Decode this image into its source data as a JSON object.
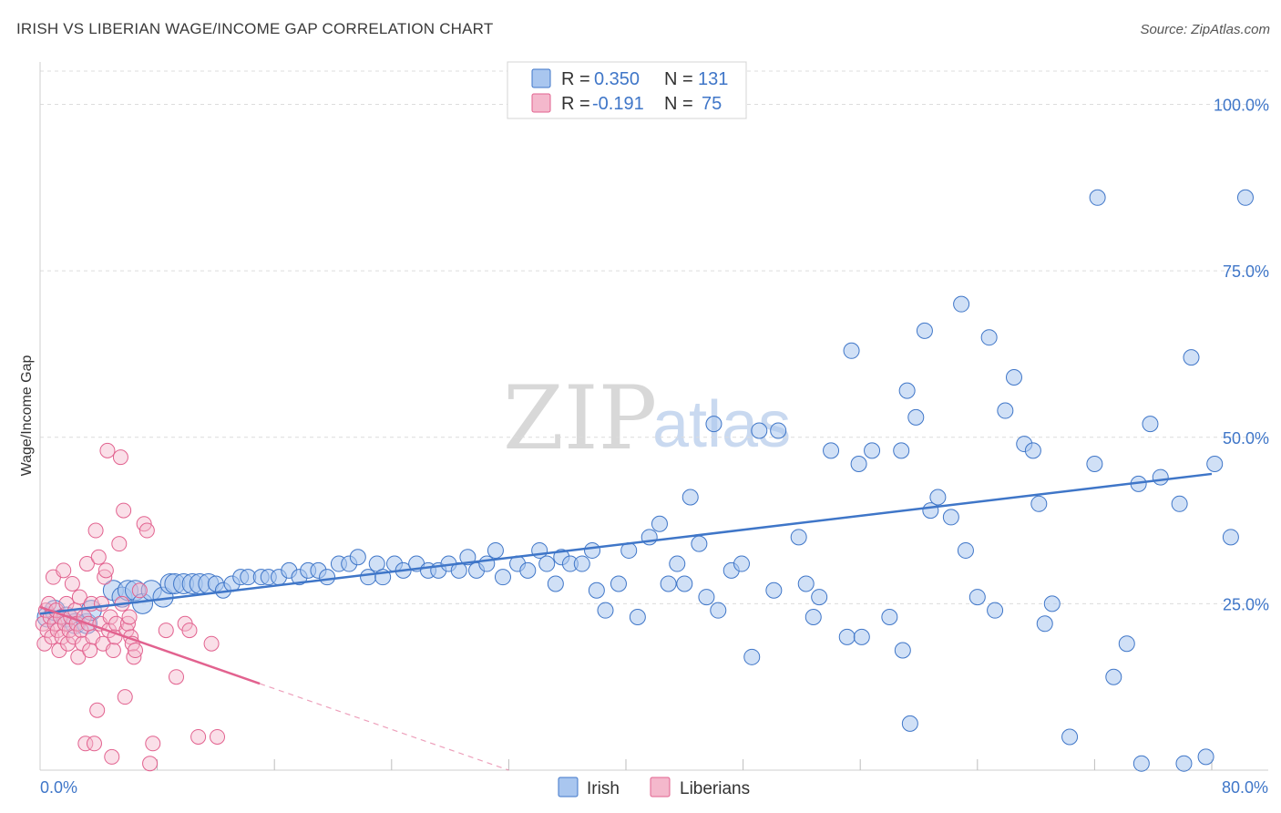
{
  "title": "IRISH VS LIBERIAN WAGE/INCOME GAP CORRELATION CHART",
  "source": "Source: ZipAtlas.com",
  "watermark": {
    "part1": "ZIP",
    "part2": "atlas"
  },
  "colors": {
    "irish": "#3f76c8",
    "irish_fill": "#a9c6ef",
    "liberian": "#e2628f",
    "liberian_fill": "#f4b8cc",
    "grid": "#dcdcdc",
    "axis_text": "#3f76c8"
  },
  "legend": {
    "r_label": "R =",
    "n_label": "N =",
    "rows": [
      {
        "r": "0.350",
        "n": "131"
      },
      {
        "r": "-0.191",
        "n": "75"
      }
    ]
  },
  "chart_data": {
    "type": "scatter",
    "title": "IRISH VS LIBERIAN WAGE/INCOME GAP CORRELATION CHART",
    "xlabel": "",
    "ylabel": "Wage/Income Gap",
    "xlim": [
      0,
      80
    ],
    "ylim": [
      0,
      105
    ],
    "x_tick_labels": [
      "0.0%",
      "80.0%"
    ],
    "y_ticks": [
      25,
      50,
      75,
      100
    ],
    "y_tick_labels": [
      "25.0%",
      "50.0%",
      "75.0%",
      "100.0%"
    ],
    "grid": true,
    "legend_position": "top-center",
    "series": [
      {
        "name": "Irish",
        "color": "#3f76c8",
        "trend": {
          "x0": 0,
          "y0": 23.5,
          "x1": 80,
          "y1": 44.5
        },
        "points": [
          [
            0.5,
            23
          ],
          [
            1.0,
            24
          ],
          [
            1.8,
            23
          ],
          [
            2.4,
            22
          ],
          [
            3.2,
            22
          ],
          [
            3.5,
            24
          ],
          [
            5.0,
            27
          ],
          [
            5.6,
            26
          ],
          [
            6.0,
            27
          ],
          [
            6.5,
            27
          ],
          [
            7.0,
            25
          ],
          [
            7.6,
            27
          ],
          [
            8.4,
            26
          ],
          [
            8.9,
            28
          ],
          [
            9.2,
            28
          ],
          [
            9.8,
            28
          ],
          [
            10.4,
            28
          ],
          [
            10.9,
            28
          ],
          [
            11.5,
            28
          ],
          [
            12.0,
            28
          ],
          [
            12.5,
            27
          ],
          [
            13.1,
            28
          ],
          [
            13.7,
            29
          ],
          [
            14.2,
            29
          ],
          [
            15.1,
            29
          ],
          [
            15.6,
            29
          ],
          [
            16.3,
            29
          ],
          [
            17.0,
            30
          ],
          [
            17.7,
            29
          ],
          [
            18.3,
            30
          ],
          [
            19.0,
            30
          ],
          [
            19.6,
            29
          ],
          [
            20.4,
            31
          ],
          [
            21.1,
            31
          ],
          [
            21.7,
            32
          ],
          [
            22.4,
            29
          ],
          [
            23.0,
            31
          ],
          [
            23.4,
            29
          ],
          [
            24.2,
            31
          ],
          [
            24.8,
            30
          ],
          [
            25.7,
            31
          ],
          [
            26.5,
            30
          ],
          [
            27.2,
            30
          ],
          [
            27.9,
            31
          ],
          [
            28.6,
            30
          ],
          [
            29.2,
            32
          ],
          [
            29.8,
            30
          ],
          [
            30.5,
            31
          ],
          [
            31.6,
            29
          ],
          [
            31.1,
            33
          ],
          [
            32.6,
            31
          ],
          [
            33.3,
            30
          ],
          [
            34.1,
            33
          ],
          [
            34.6,
            31
          ],
          [
            35.2,
            28
          ],
          [
            35.6,
            32
          ],
          [
            36.2,
            31
          ],
          [
            37.0,
            31
          ],
          [
            37.7,
            33
          ],
          [
            38.0,
            27
          ],
          [
            38.6,
            24
          ],
          [
            39.5,
            28
          ],
          [
            40.2,
            33
          ],
          [
            40.8,
            23
          ],
          [
            41.6,
            35
          ],
          [
            42.3,
            37
          ],
          [
            42.9,
            28
          ],
          [
            43.5,
            31
          ],
          [
            44.0,
            28
          ],
          [
            44.4,
            41
          ],
          [
            45.0,
            34
          ],
          [
            45.5,
            26
          ],
          [
            46.0,
            52
          ],
          [
            46.3,
            24
          ],
          [
            47.2,
            30
          ],
          [
            47.9,
            31
          ],
          [
            48.6,
            17
          ],
          [
            49.1,
            51
          ],
          [
            50.1,
            27
          ],
          [
            50.4,
            51
          ],
          [
            51.8,
            35
          ],
          [
            52.3,
            28
          ],
          [
            52.8,
            23
          ],
          [
            53.2,
            26
          ],
          [
            54.0,
            48
          ],
          [
            55.1,
            20
          ],
          [
            55.4,
            63
          ],
          [
            55.9,
            46
          ],
          [
            56.1,
            20
          ],
          [
            56.8,
            48
          ],
          [
            58.0,
            23
          ],
          [
            58.8,
            48
          ],
          [
            58.9,
            18
          ],
          [
            59.4,
            7
          ],
          [
            59.2,
            57
          ],
          [
            59.8,
            53
          ],
          [
            60.4,
            66
          ],
          [
            60.8,
            39
          ],
          [
            61.3,
            41
          ],
          [
            62.2,
            38
          ],
          [
            62.9,
            70
          ],
          [
            63.2,
            33
          ],
          [
            64.0,
            26
          ],
          [
            64.8,
            65
          ],
          [
            65.2,
            24
          ],
          [
            65.9,
            54
          ],
          [
            66.5,
            59
          ],
          [
            67.2,
            49
          ],
          [
            67.8,
            48
          ],
          [
            68.2,
            40
          ],
          [
            68.6,
            22
          ],
          [
            69.1,
            25
          ],
          [
            70.3,
            5
          ],
          [
            72.0,
            46
          ],
          [
            72.2,
            86
          ],
          [
            73.3,
            14
          ],
          [
            74.2,
            19
          ],
          [
            75.0,
            43
          ],
          [
            75.2,
            1
          ],
          [
            75.8,
            52
          ],
          [
            76.5,
            44
          ],
          [
            78.1,
            1
          ],
          [
            77.8,
            40
          ],
          [
            78.6,
            62
          ],
          [
            79.6,
            2
          ],
          [
            80.2,
            46
          ],
          [
            81.3,
            35
          ],
          [
            82.3,
            86
          ]
        ]
      },
      {
        "name": "Liberians",
        "color": "#e2628f",
        "trend": {
          "x0": 0,
          "y0": 24.5,
          "x1": 15,
          "y1": 13
        },
        "trend_extension": {
          "x1": 32,
          "y1": 0
        },
        "points": [
          [
            0.2,
            22
          ],
          [
            0.3,
            19
          ],
          [
            0.4,
            24
          ],
          [
            0.5,
            21
          ],
          [
            0.6,
            25
          ],
          [
            0.7,
            23
          ],
          [
            0.8,
            20
          ],
          [
            0.9,
            29
          ],
          [
            1.0,
            22
          ],
          [
            1.1,
            24
          ],
          [
            1.2,
            21
          ],
          [
            1.3,
            18
          ],
          [
            1.4,
            23
          ],
          [
            1.5,
            20
          ],
          [
            1.6,
            30
          ],
          [
            1.7,
            22
          ],
          [
            1.8,
            25
          ],
          [
            1.9,
            19
          ],
          [
            2.0,
            21
          ],
          [
            2.1,
            23
          ],
          [
            2.2,
            28
          ],
          [
            2.3,
            20
          ],
          [
            2.4,
            24
          ],
          [
            2.5,
            22
          ],
          [
            2.6,
            17
          ],
          [
            2.7,
            26
          ],
          [
            2.8,
            21
          ],
          [
            2.9,
            19
          ],
          [
            3.0,
            23
          ],
          [
            3.1,
            4
          ],
          [
            3.2,
            31
          ],
          [
            3.3,
            22
          ],
          [
            3.4,
            18
          ],
          [
            3.5,
            25
          ],
          [
            3.6,
            20
          ],
          [
            3.7,
            4
          ],
          [
            3.8,
            36
          ],
          [
            3.9,
            9
          ],
          [
            4.0,
            32
          ],
          [
            4.1,
            22
          ],
          [
            4.2,
            25
          ],
          [
            4.3,
            19
          ],
          [
            4.4,
            29
          ],
          [
            4.5,
            30
          ],
          [
            4.6,
            48
          ],
          [
            4.7,
            21
          ],
          [
            4.8,
            23
          ],
          [
            4.9,
            2
          ],
          [
            5.0,
            18
          ],
          [
            5.1,
            20
          ],
          [
            5.2,
            22
          ],
          [
            5.4,
            34
          ],
          [
            5.5,
            47
          ],
          [
            5.6,
            25
          ],
          [
            5.7,
            39
          ],
          [
            5.8,
            11
          ],
          [
            5.9,
            21
          ],
          [
            6.0,
            22
          ],
          [
            6.1,
            23
          ],
          [
            6.2,
            20
          ],
          [
            6.3,
            19
          ],
          [
            6.4,
            17
          ],
          [
            6.5,
            18
          ],
          [
            6.8,
            27
          ],
          [
            7.1,
            37
          ],
          [
            7.3,
            36
          ],
          [
            7.5,
            1
          ],
          [
            7.7,
            4
          ],
          [
            8.6,
            21
          ],
          [
            9.3,
            14
          ],
          [
            9.9,
            22
          ],
          [
            10.2,
            21
          ],
          [
            10.8,
            5
          ],
          [
            11.7,
            19
          ],
          [
            12.1,
            5
          ]
        ]
      }
    ]
  },
  "bottom_legend": [
    "Irish",
    "Liberians"
  ]
}
